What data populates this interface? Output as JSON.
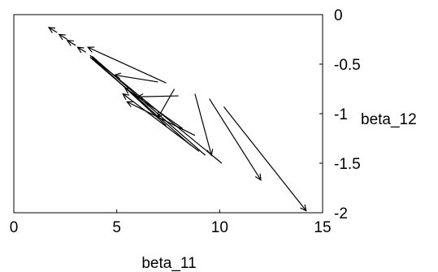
{
  "chart_data": {
    "type": "quiver",
    "xlabel": "beta_11",
    "ylabel": "beta_12",
    "xlim": [
      0,
      15
    ],
    "ylim": [
      -2,
      0
    ],
    "x_ticks": [
      {
        "value": 0,
        "label": "0"
      },
      {
        "value": 5,
        "label": "5"
      },
      {
        "value": 10,
        "label": "10"
      },
      {
        "value": 15,
        "label": "15"
      }
    ],
    "y_ticks": [
      {
        "value": 0,
        "label": "0"
      },
      {
        "value": -0.5,
        "label": "-0.5"
      },
      {
        "value": -1,
        "label": "-1"
      },
      {
        "value": -1.5,
        "label": "-1.5"
      },
      {
        "value": -2,
        "label": "-2"
      }
    ],
    "arrows": [
      {
        "from": [
          2.1,
          -0.18
        ],
        "to": [
          1.7,
          -0.13
        ],
        "head": true
      },
      {
        "from": [
          2.6,
          -0.25
        ],
        "to": [
          2.2,
          -0.2
        ],
        "head": true
      },
      {
        "from": [
          3.0,
          -0.31
        ],
        "to": [
          2.6,
          -0.26
        ],
        "head": true
      },
      {
        "from": [
          3.5,
          -0.38
        ],
        "to": [
          3.1,
          -0.33
        ],
        "head": true
      },
      {
        "from": [
          7.4,
          -0.69
        ],
        "to": [
          3.6,
          -0.33
        ],
        "head": true
      },
      {
        "from": [
          7.0,
          -0.68
        ],
        "to": [
          4.9,
          -0.61
        ],
        "head": true
      },
      {
        "from": [
          7.8,
          -0.75
        ],
        "to": [
          7.0,
          -1.04
        ],
        "head": true
      },
      {
        "from": [
          8.0,
          -0.82
        ],
        "to": [
          6.0,
          -0.83
        ],
        "head": true
      },
      {
        "from": [
          8.8,
          -0.8
        ],
        "to": [
          9.6,
          -1.42
        ],
        "head": true
      },
      {
        "from": [
          9.5,
          -0.85
        ],
        "to": [
          12.0,
          -1.67
        ],
        "head": true
      },
      {
        "from": [
          10.2,
          -0.93
        ],
        "to": [
          14.2,
          -1.98
        ],
        "head": true
      },
      {
        "from": [
          8.8,
          -1.22
        ],
        "to": [
          5.5,
          -0.88
        ],
        "head": true
      },
      {
        "from": [
          9.0,
          -1.38
        ],
        "to": [
          5.3,
          -0.8
        ],
        "head": true
      },
      {
        "from": [
          8.2,
          -1.15
        ],
        "to": [
          5.4,
          -0.74
        ],
        "head": true
      },
      {
        "from": [
          10.1,
          -1.5
        ],
        "to": [
          3.8,
          -0.43
        ],
        "head": false
      },
      {
        "from": [
          9.3,
          -1.42
        ],
        "to": [
          3.8,
          -0.42
        ],
        "head": false
      },
      {
        "from": [
          8.6,
          -1.32
        ],
        "to": [
          3.8,
          -0.44
        ],
        "head": false
      },
      {
        "from": [
          7.4,
          -1.12
        ],
        "to": [
          3.7,
          -0.41
        ],
        "head": false
      },
      {
        "from": [
          6.5,
          -0.93
        ],
        "to": [
          3.7,
          -0.43
        ],
        "head": false
      }
    ]
  }
}
